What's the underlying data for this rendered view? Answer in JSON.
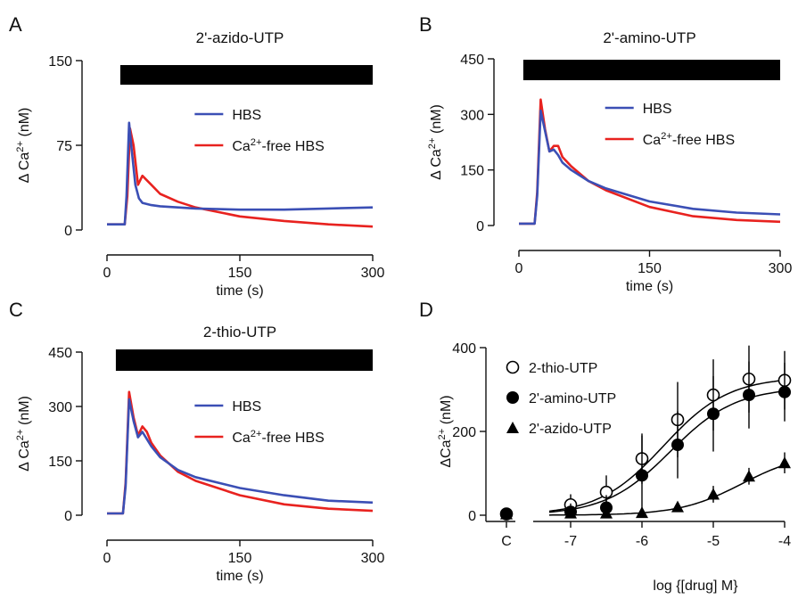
{
  "figure": {
    "panels": [
      "A",
      "B",
      "C",
      "D"
    ]
  },
  "chart_data": [
    {
      "type": "line",
      "panel": "A",
      "title": "2'-azido-UTP",
      "xlabel": "time (s)",
      "ylabel": "Δ Ca²⁺ (nM)",
      "xlim": [
        0,
        300
      ],
      "ylim": [
        0,
        150
      ],
      "x_ticks": [
        "0",
        "150",
        "300"
      ],
      "y_ticks": [
        "0",
        "75",
        "150"
      ],
      "stimulus_bar": [
        15,
        300
      ],
      "series": [
        {
          "name": "HBS",
          "color": "#3b4fb5",
          "x": [
            0,
            20,
            22,
            25,
            28,
            32,
            36,
            40,
            50,
            60,
            80,
            100,
            150,
            200,
            250,
            300
          ],
          "y": [
            5,
            5,
            30,
            95,
            70,
            40,
            28,
            24,
            22,
            21,
            20,
            19,
            18,
            18,
            19,
            20
          ]
        },
        {
          "name": "Ca²⁺-free HBS",
          "color": "#e8221f",
          "x": [
            0,
            20,
            23,
            26,
            30,
            35,
            40,
            50,
            60,
            80,
            100,
            150,
            200,
            250,
            300
          ],
          "y": [
            5,
            5,
            30,
            90,
            75,
            40,
            48,
            40,
            32,
            25,
            20,
            12,
            8,
            5,
            3
          ]
        }
      ]
    },
    {
      "type": "line",
      "panel": "B",
      "title": "2'-amino-UTP",
      "xlabel": "time (s)",
      "ylabel": "Δ Ca²⁺ (nM)",
      "xlim": [
        0,
        300
      ],
      "ylim": [
        0,
        450
      ],
      "x_ticks": [
        "0",
        "150",
        "300"
      ],
      "y_ticks": [
        "0",
        "150",
        "300",
        "450"
      ],
      "stimulus_bar": [
        5,
        300
      ],
      "series": [
        {
          "name": "HBS",
          "color": "#3b4fb5",
          "x": [
            0,
            18,
            21,
            25,
            30,
            35,
            40,
            45,
            50,
            60,
            80,
            100,
            150,
            200,
            250,
            300
          ],
          "y": [
            5,
            5,
            80,
            310,
            255,
            200,
            205,
            190,
            170,
            150,
            120,
            100,
            65,
            45,
            35,
            30
          ]
        },
        {
          "name": "Ca²⁺-free HBS",
          "color": "#e8221f",
          "x": [
            0,
            18,
            21,
            25,
            30,
            35,
            40,
            45,
            50,
            60,
            80,
            100,
            150,
            200,
            250,
            300
          ],
          "y": [
            5,
            5,
            90,
            340,
            260,
            200,
            215,
            215,
            185,
            160,
            120,
            95,
            50,
            25,
            15,
            10
          ]
        }
      ]
    },
    {
      "type": "line",
      "panel": "C",
      "title": "2-thio-UTP",
      "xlabel": "time (s)",
      "ylabel": "Δ Ca²⁺ (nM)",
      "xlim": [
        0,
        300
      ],
      "ylim": [
        0,
        450
      ],
      "x_ticks": [
        "0",
        "150",
        "300"
      ],
      "y_ticks": [
        "0",
        "150",
        "300",
        "450"
      ],
      "stimulus_bar": [
        10,
        300
      ],
      "series": [
        {
          "name": "HBS",
          "color": "#3b4fb5",
          "x": [
            0,
            18,
            21,
            25,
            30,
            35,
            40,
            45,
            50,
            60,
            80,
            100,
            150,
            200,
            250,
            300
          ],
          "y": [
            5,
            5,
            80,
            320,
            260,
            215,
            230,
            210,
            190,
            160,
            125,
            105,
            75,
            55,
            40,
            35
          ]
        },
        {
          "name": "Ca²⁺-free HBS",
          "color": "#e8221f",
          "x": [
            0,
            18,
            21,
            25,
            30,
            35,
            40,
            45,
            50,
            60,
            80,
            100,
            150,
            200,
            250,
            300
          ],
          "y": [
            5,
            5,
            90,
            340,
            270,
            220,
            245,
            230,
            200,
            165,
            120,
            95,
            55,
            30,
            18,
            12
          ]
        }
      ]
    },
    {
      "type": "scatter",
      "panel": "D",
      "xlabel": "log {[drug] M}",
      "ylabel": "ΔCa²⁺ (nM)",
      "xlim": [
        -7.5,
        -4
      ],
      "ylim": [
        0,
        400
      ],
      "x_ticks": [
        "C",
        "-7",
        "-6",
        "-5",
        "-4"
      ],
      "y_ticks": [
        "0",
        "200",
        "400"
      ],
      "series": [
        {
          "name": "2-thio-UTP",
          "marker": "open-circle",
          "x": [
            -7,
            -6.5,
            -6,
            -5.5,
            -5,
            -4.5,
            -4
          ],
          "y": [
            25,
            55,
            135,
            228,
            287,
            325,
            322
          ],
          "err": [
            25,
            40,
            60,
            90,
            85,
            80,
            70
          ],
          "control": 3
        },
        {
          "name": "2'-amino-UTP",
          "marker": "filled-circle",
          "x": [
            -7,
            -6.5,
            -6,
            -5.5,
            -5,
            -4.5,
            -4
          ],
          "y": [
            8,
            18,
            95,
            168,
            242,
            287,
            294
          ],
          "err": [
            20,
            30,
            95,
            80,
            90,
            80,
            70
          ],
          "control": 3
        },
        {
          "name": "2'-azido-UTP",
          "marker": "filled-triangle",
          "x": [
            -7,
            -6.5,
            -6,
            -5.5,
            -5,
            -4.5,
            -4
          ],
          "y": [
            5,
            5,
            6,
            20,
            50,
            93,
            125
          ],
          "err": [
            5,
            5,
            5,
            10,
            20,
            20,
            25
          ],
          "control": 3
        }
      ]
    }
  ]
}
